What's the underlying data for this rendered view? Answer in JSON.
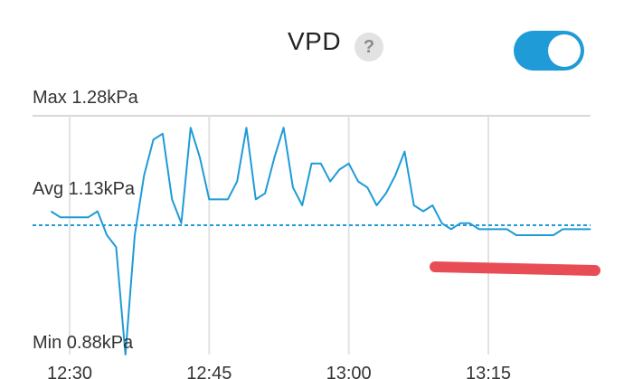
{
  "header": {
    "title": "VPD",
    "help_icon": "question-icon",
    "help_glyph": "?",
    "toggle_on": true,
    "accent_color": "#1f9bd7"
  },
  "chart_data": {
    "type": "line",
    "title": "VPD",
    "xlabel": "",
    "ylabel": "",
    "unit": "kPa",
    "x_ticks": [
      "12:30",
      "12:45",
      "13:00",
      "13:15"
    ],
    "xlim": [
      "12:28",
      "13:26"
    ],
    "ylim": [
      0.88,
      1.28
    ],
    "grid": true,
    "annotations": {
      "max": {
        "label": "Max 1.28kPa",
        "value": 1.28
      },
      "avg": {
        "label": "Avg 1.13kPa",
        "value": 1.13
      },
      "min": {
        "label": "Min 0.88kPa",
        "value": 0.88
      }
    },
    "line_color": "#1f9bd7",
    "marker_color": "#e84d55",
    "series": [
      {
        "x": [
          "12:28",
          "12:29",
          "12:30",
          "12:31",
          "12:32",
          "12:33",
          "12:34",
          "12:35",
          "12:36",
          "12:37",
          "12:38",
          "12:39",
          "12:40",
          "12:41",
          "12:42",
          "12:43",
          "12:44",
          "12:45",
          "12:46",
          "12:47",
          "12:48",
          "12:49",
          "12:50",
          "12:51",
          "12:52",
          "12:53",
          "12:54",
          "12:55",
          "12:56",
          "12:57",
          "12:58",
          "12:59",
          "13:00",
          "13:01",
          "13:02",
          "13:03",
          "13:04",
          "13:05",
          "13:06",
          "13:07",
          "13:08",
          "13:09",
          "13:10",
          "13:11",
          "13:12",
          "13:13",
          "13:14",
          "13:15",
          "13:16",
          "13:17",
          "13:18",
          "13:19",
          "13:20",
          "13:21",
          "13:22",
          "13:23",
          "13:24",
          "13:25",
          "13:26"
        ],
        "values": [
          1.12,
          1.11,
          1.11,
          1.11,
          1.11,
          1.12,
          1.08,
          1.06,
          0.88,
          1.08,
          1.18,
          1.24,
          1.25,
          1.14,
          1.1,
          1.26,
          1.21,
          1.14,
          1.14,
          1.14,
          1.17,
          1.26,
          1.14,
          1.15,
          1.21,
          1.26,
          1.16,
          1.13,
          1.2,
          1.2,
          1.17,
          1.19,
          1.2,
          1.17,
          1.16,
          1.13,
          1.15,
          1.18,
          1.22,
          1.13,
          1.12,
          1.13,
          1.1,
          1.09,
          1.1,
          1.1,
          1.09,
          1.09,
          1.09,
          1.09,
          1.08,
          1.08,
          1.08,
          1.08,
          1.08,
          1.09,
          1.09,
          1.09,
          1.09
        ]
      }
    ]
  }
}
